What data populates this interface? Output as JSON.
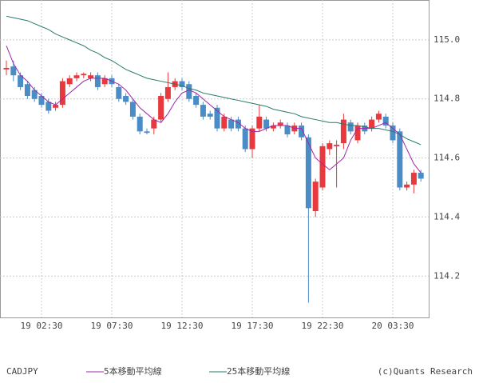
{
  "chart_data": {
    "type": "candlestick",
    "name": "CADJPY",
    "source": "(c)Quants Research",
    "up_color": "#e83a3e",
    "down_color": "#4a8cc6",
    "categories": [
      null,
      null,
      null,
      null,
      null,
      "19 02:30",
      null,
      null,
      null,
      null,
      null,
      null,
      null,
      null,
      null,
      "19 07:30",
      null,
      null,
      null,
      null,
      null,
      null,
      null,
      null,
      null,
      "19 12:30",
      null,
      null,
      null,
      null,
      null,
      null,
      null,
      null,
      null,
      "19 17:30",
      null,
      null,
      null,
      null,
      null,
      null,
      null,
      null,
      null,
      "19 22:30",
      null,
      null,
      null,
      null,
      null,
      null,
      null,
      null,
      null,
      "20 03:30",
      null,
      null,
      null,
      null
    ],
    "open": [
      114.9,
      114.91,
      114.88,
      114.85,
      114.83,
      114.81,
      114.79,
      114.77,
      114.78,
      114.85,
      114.87,
      114.88,
      114.87,
      114.88,
      114.85,
      114.87,
      114.84,
      114.81,
      114.79,
      114.74,
      114.69,
      114.7,
      114.73,
      114.8,
      114.84,
      114.86,
      114.85,
      114.81,
      114.78,
      114.75,
      114.77,
      114.7,
      114.73,
      114.73,
      114.7,
      114.63,
      114.7,
      114.73,
      114.7,
      114.71,
      114.71,
      114.69,
      114.71,
      114.67,
      114.42,
      114.5,
      114.63,
      114.64,
      114.65,
      114.72,
      114.66,
      114.71,
      114.7,
      114.73,
      114.74,
      114.71,
      114.69,
      114.5,
      114.51,
      114.55
    ],
    "high": [
      114.93,
      114.93,
      114.89,
      114.86,
      114.84,
      114.82,
      114.8,
      114.79,
      114.87,
      114.88,
      114.89,
      114.89,
      114.89,
      114.89,
      114.88,
      114.88,
      114.85,
      114.82,
      114.8,
      114.75,
      114.7,
      114.74,
      114.82,
      114.89,
      114.87,
      114.87,
      114.86,
      114.82,
      114.79,
      114.76,
      114.78,
      114.75,
      114.74,
      114.74,
      114.71,
      114.71,
      114.78,
      114.74,
      114.72,
      114.73,
      114.72,
      114.72,
      114.72,
      114.68,
      114.53,
      114.65,
      114.66,
      114.66,
      114.75,
      114.73,
      114.72,
      114.72,
      114.74,
      114.76,
      114.75,
      114.72,
      114.7,
      114.52,
      114.56,
      114.56
    ],
    "low": [
      114.88,
      114.86,
      114.83,
      114.8,
      114.79,
      114.77,
      114.75,
      114.76,
      114.77,
      114.84,
      114.86,
      114.87,
      114.86,
      114.83,
      114.84,
      114.84,
      114.79,
      114.78,
      114.73,
      114.68,
      114.68,
      114.68,
      114.72,
      114.79,
      114.83,
      114.83,
      114.79,
      114.77,
      114.73,
      114.73,
      114.69,
      114.69,
      114.69,
      114.69,
      114.62,
      114.6,
      114.69,
      114.69,
      114.69,
      114.7,
      114.67,
      114.68,
      114.66,
      114.11,
      114.4,
      114.49,
      114.61,
      114.5,
      114.63,
      114.68,
      114.65,
      114.68,
      114.69,
      114.72,
      114.7,
      114.65,
      114.49,
      114.49,
      114.48,
      114.52
    ],
    "close": [
      114.905,
      114.88,
      114.84,
      114.81,
      114.8,
      114.78,
      114.76,
      114.78,
      114.86,
      114.87,
      114.88,
      114.885,
      114.88,
      114.84,
      114.87,
      114.85,
      114.8,
      114.79,
      114.74,
      114.69,
      114.685,
      114.73,
      114.81,
      114.84,
      114.86,
      114.84,
      114.8,
      114.78,
      114.74,
      114.74,
      114.7,
      114.74,
      114.7,
      114.7,
      114.63,
      114.7,
      114.74,
      114.7,
      114.71,
      114.72,
      114.68,
      114.71,
      114.67,
      114.43,
      114.52,
      114.64,
      114.65,
      114.645,
      114.73,
      114.69,
      114.71,
      114.69,
      114.73,
      114.75,
      114.71,
      114.66,
      114.5,
      114.51,
      114.55,
      114.53
    ],
    "series": [
      {
        "name": "5本移動平均線",
        "color": "#a028a8",
        "values": [
          114.98,
          114.92,
          114.88,
          114.86,
          114.83,
          114.81,
          114.79,
          114.78,
          114.8,
          114.82,
          114.84,
          114.86,
          114.87,
          114.87,
          114.87,
          114.86,
          114.85,
          114.83,
          114.8,
          114.77,
          114.75,
          114.73,
          114.72,
          114.75,
          114.79,
          114.82,
          114.83,
          114.82,
          114.8,
          114.78,
          114.76,
          114.74,
          114.73,
          114.72,
          114.7,
          114.69,
          114.69,
          114.7,
          114.71,
          114.71,
          114.71,
          114.7,
          114.7,
          114.65,
          114.6,
          114.58,
          114.56,
          114.58,
          114.6,
          114.66,
          114.7,
          114.7,
          114.7,
          114.71,
          114.72,
          114.7,
          114.68,
          114.63,
          114.58,
          114.55
        ]
      },
      {
        "name": "25本移動平均線",
        "color": "#2a7a6c",
        "values": [
          115.08,
          115.075,
          115.07,
          115.065,
          115.055,
          115.045,
          115.035,
          115.02,
          115.01,
          115.0,
          114.99,
          114.98,
          114.965,
          114.955,
          114.94,
          114.93,
          114.915,
          114.9,
          114.89,
          114.88,
          114.87,
          114.865,
          114.86,
          114.855,
          114.85,
          114.845,
          114.835,
          114.83,
          114.82,
          114.815,
          114.81,
          114.805,
          114.8,
          114.795,
          114.79,
          114.785,
          114.78,
          114.775,
          114.765,
          114.76,
          114.755,
          114.75,
          114.74,
          114.735,
          114.73,
          114.725,
          114.72,
          114.72,
          114.715,
          114.71,
          114.71,
          114.705,
          114.7,
          114.7,
          114.695,
          114.69,
          114.68,
          114.665,
          114.655,
          114.645
        ]
      }
    ],
    "ylim": [
      114.06,
      115.135
    ],
    "yticks": [
      114.2,
      114.4,
      114.6,
      114.8,
      {
        "value": 115.0,
        "label": "115.0"
      }
    ],
    "grid": true
  }
}
